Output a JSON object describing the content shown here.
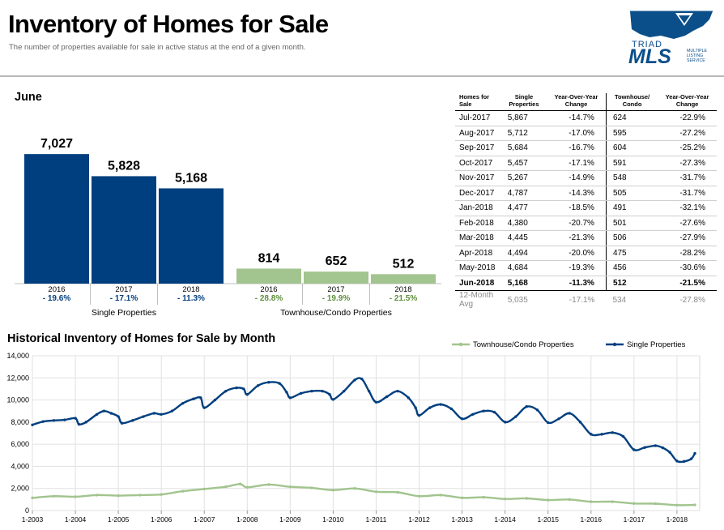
{
  "header": {
    "title": "Inventory of Homes for Sale",
    "subtitle": "The number of properties available for sale in active status at the end of a given month."
  },
  "logo": {
    "line1": "TRIAD",
    "line2": "MLS",
    "tagline": [
      "MULTIPLE",
      "LISTING",
      "SERVICE"
    ]
  },
  "colors": {
    "single": "#003f7f",
    "condo": "#a2c48e",
    "single_change": "#003f7f",
    "condo_change": "#5f8f3a"
  },
  "chart_data": [
    {
      "type": "bar",
      "title": "June",
      "groups": [
        {
          "name": "Single Properties",
          "categories": [
            "2016",
            "2017",
            "2018"
          ],
          "values": [
            7027,
            5828,
            5168
          ],
          "value_labels": [
            "7,027",
            "5,828",
            "5,168"
          ],
          "changes": [
            "- 19.6%",
            "- 17.1%",
            "- 11.3%"
          ]
        },
        {
          "name": "Townhouse/Condo Properties",
          "categories": [
            "2016",
            "2017",
            "2018"
          ],
          "values": [
            814,
            652,
            512
          ],
          "value_labels": [
            "814",
            "652",
            "512"
          ],
          "changes": [
            "- 28.8%",
            "- 19.9%",
            "- 21.5%"
          ]
        }
      ],
      "ylim": [
        0,
        8000
      ]
    },
    {
      "type": "table",
      "columns": [
        "Homes for Sale",
        "Single Properties",
        "Year-Over-Year Change",
        "Townhouse/ Condo",
        "Year-Over-Year Change"
      ],
      "rows": [
        [
          "Jul-2017",
          "5,867",
          "-14.7%",
          "624",
          "-22.9%"
        ],
        [
          "Aug-2017",
          "5,712",
          "-17.0%",
          "595",
          "-27.2%"
        ],
        [
          "Sep-2017",
          "5,684",
          "-16.7%",
          "604",
          "-25.2%"
        ],
        [
          "Oct-2017",
          "5,457",
          "-17.1%",
          "591",
          "-27.3%"
        ],
        [
          "Nov-2017",
          "5,267",
          "-14.9%",
          "548",
          "-31.7%"
        ],
        [
          "Dec-2017",
          "4,787",
          "-14.3%",
          "505",
          "-31.7%"
        ],
        [
          "Jan-2018",
          "4,477",
          "-18.5%",
          "491",
          "-32.1%"
        ],
        [
          "Feb-2018",
          "4,380",
          "-20.7%",
          "501",
          "-27.6%"
        ],
        [
          "Mar-2018",
          "4,445",
          "-21.3%",
          "506",
          "-27.9%"
        ],
        [
          "Apr-2018",
          "4,494",
          "-20.0%",
          "475",
          "-28.2%"
        ],
        [
          "May-2018",
          "4,684",
          "-19.3%",
          "456",
          "-30.6%"
        ],
        [
          "Jun-2018",
          "5,168",
          "-11.3%",
          "512",
          "-21.5%"
        ]
      ],
      "average_row": [
        "12-Month Avg",
        "5,035",
        "-17.1%",
        "534",
        "-27.8%"
      ]
    },
    {
      "type": "line",
      "title": "Historical Inventory of Homes for Sale by Month",
      "legend": [
        "Townhouse/Condo Properties",
        "Single Properties"
      ],
      "legend_position": "top-right",
      "x_ticks": [
        "1-2003",
        "1-2004",
        "1-2005",
        "1-2006",
        "1-2007",
        "1-2008",
        "1-2009",
        "1-2010",
        "1-2011",
        "1-2012",
        "1-2013",
        "1-2014",
        "1-2015",
        "1-2016",
        "1-2017",
        "1-2018"
      ],
      "y_ticks": [
        "0",
        "2,000",
        "4,000",
        "6,000",
        "8,000",
        "10,000",
        "12,000",
        "14,000"
      ],
      "ylim": [
        0,
        14000
      ],
      "grid": true,
      "xlim": [
        "2003-01",
        "2018-06"
      ],
      "series": [
        {
          "name": "Single Properties",
          "points": [
            [
              "2003-01",
              7750
            ],
            [
              "2003-04",
              8050
            ],
            [
              "2003-07",
              8150
            ],
            [
              "2003-10",
              8200
            ],
            [
              "2004-01",
              8350
            ],
            [
              "2004-02",
              7800
            ],
            [
              "2004-04",
              8000
            ],
            [
              "2004-07",
              8700
            ],
            [
              "2004-09",
              9000
            ],
            [
              "2004-11",
              8800
            ],
            [
              "2005-01",
              8500
            ],
            [
              "2005-02",
              7900
            ],
            [
              "2005-05",
              8150
            ],
            [
              "2005-08",
              8500
            ],
            [
              "2005-11",
              8800
            ],
            [
              "2006-01",
              8700
            ],
            [
              "2006-04",
              9000
            ],
            [
              "2006-07",
              9700
            ],
            [
              "2006-10",
              10100
            ],
            [
              "2006-12",
              10200
            ],
            [
              "2007-01",
              9300
            ],
            [
              "2007-04",
              10000
            ],
            [
              "2007-07",
              10800
            ],
            [
              "2007-10",
              11100
            ],
            [
              "2007-12",
              11000
            ],
            [
              "2008-01",
              10500
            ],
            [
              "2008-04",
              11300
            ],
            [
              "2008-07",
              11600
            ],
            [
              "2008-10",
              11500
            ],
            [
              "2008-12",
              10700
            ],
            [
              "2009-01",
              10200
            ],
            [
              "2009-04",
              10600
            ],
            [
              "2009-07",
              10800
            ],
            [
              "2009-10",
              10800
            ],
            [
              "2009-12",
              10500
            ],
            [
              "2010-01",
              10050
            ],
            [
              "2010-04",
              10800
            ],
            [
              "2010-07",
              11800
            ],
            [
              "2010-09",
              11900
            ],
            [
              "2010-11",
              10800
            ],
            [
              "2011-01",
              9800
            ],
            [
              "2011-04",
              10300
            ],
            [
              "2011-07",
              10800
            ],
            [
              "2011-10",
              10200
            ],
            [
              "2011-12",
              9300
            ],
            [
              "2012-01",
              8600
            ],
            [
              "2012-04",
              9300
            ],
            [
              "2012-07",
              9600
            ],
            [
              "2012-10",
              9200
            ],
            [
              "2013-01",
              8300
            ],
            [
              "2013-04",
              8700
            ],
            [
              "2013-07",
              9000
            ],
            [
              "2013-10",
              8900
            ],
            [
              "2014-01",
              8000
            ],
            [
              "2014-04",
              8500
            ],
            [
              "2014-07",
              9400
            ],
            [
              "2014-10",
              9100
            ],
            [
              "2015-01",
              7950
            ],
            [
              "2015-04",
              8300
            ],
            [
              "2015-07",
              8800
            ],
            [
              "2015-10",
              8000
            ],
            [
              "2016-01",
              6900
            ],
            [
              "2016-04",
              6900
            ],
            [
              "2016-07",
              7050
            ],
            [
              "2016-10",
              6700
            ],
            [
              "2017-01",
              5500
            ],
            [
              "2017-04",
              5700
            ],
            [
              "2017-07",
              5870
            ],
            [
              "2017-09",
              5680
            ],
            [
              "2017-11",
              5270
            ],
            [
              "2018-01",
              4480
            ],
            [
              "2018-03",
              4445
            ],
            [
              "2018-05",
              4684
            ],
            [
              "2018-06",
              5168
            ]
          ]
        },
        {
          "name": "Townhouse/Condo Properties",
          "points": [
            [
              "2003-01",
              1150
            ],
            [
              "2003-07",
              1300
            ],
            [
              "2004-01",
              1250
            ],
            [
              "2004-07",
              1400
            ],
            [
              "2005-01",
              1350
            ],
            [
              "2005-07",
              1400
            ],
            [
              "2006-01",
              1450
            ],
            [
              "2006-07",
              1750
            ],
            [
              "2007-01",
              1950
            ],
            [
              "2007-07",
              2150
            ],
            [
              "2007-11",
              2400
            ],
            [
              "2008-01",
              2100
            ],
            [
              "2008-07",
              2350
            ],
            [
              "2009-01",
              2150
            ],
            [
              "2009-07",
              2050
            ],
            [
              "2010-01",
              1850
            ],
            [
              "2010-07",
              2000
            ],
            [
              "2011-01",
              1700
            ],
            [
              "2011-07",
              1650
            ],
            [
              "2012-01",
              1300
            ],
            [
              "2012-07",
              1400
            ],
            [
              "2013-01",
              1150
            ],
            [
              "2013-07",
              1200
            ],
            [
              "2014-01",
              1050
            ],
            [
              "2014-07",
              1100
            ],
            [
              "2015-01",
              950
            ],
            [
              "2015-07",
              1000
            ],
            [
              "2016-01",
              800
            ],
            [
              "2016-07",
              800
            ],
            [
              "2017-01",
              640
            ],
            [
              "2017-07",
              624
            ],
            [
              "2018-01",
              491
            ],
            [
              "2018-06",
              512
            ]
          ]
        }
      ]
    }
  ]
}
